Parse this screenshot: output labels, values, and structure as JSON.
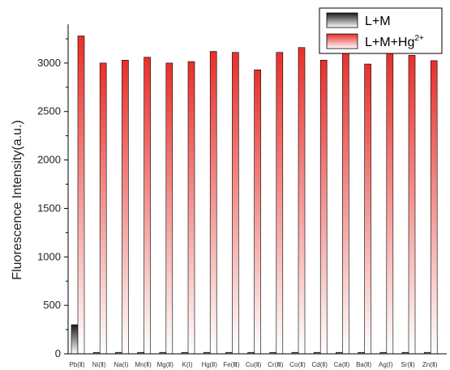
{
  "chart_data": {
    "type": "bar",
    "title": "",
    "xlabel": "",
    "ylabel": "Fluorescence Intensity(a.u.)",
    "ylim": [
      0,
      3400
    ],
    "yticks": [
      0,
      500,
      1000,
      1500,
      2000,
      2500,
      3000
    ],
    "grid": false,
    "legend_position": "top-right",
    "categories": [
      "Pb(Ⅱ)",
      "Ni(Ⅱ)",
      "Na(Ⅰ)",
      "Mn(Ⅱ)",
      "Mg(Ⅱ)",
      "K(Ⅰ)",
      "Hg(Ⅱ)",
      "Fe(Ⅲ)",
      "Cu(Ⅱ)",
      "Cr(Ⅲ)",
      "Co(Ⅱ)",
      "Cd(Ⅱ)",
      "Ca(Ⅱ)",
      "Ba(Ⅱ)",
      "Ag(Ⅰ)",
      "Sr(Ⅱ)",
      "Zn(Ⅱ)"
    ],
    "series": [
      {
        "name": "L+M",
        "color": "#222222",
        "values": [
          300,
          15,
          15,
          15,
          15,
          15,
          15,
          15,
          15,
          15,
          15,
          15,
          15,
          15,
          15,
          15,
          15
        ]
      },
      {
        "name": "L+M+Hg2+",
        "color": "#e8302a",
        "values": [
          3280,
          3000,
          3030,
          3060,
          3000,
          3015,
          3120,
          3110,
          2930,
          3110,
          3160,
          3030,
          3120,
          2990,
          3100,
          3080,
          3025
        ]
      }
    ],
    "legend": {
      "entries": [
        {
          "label": "L+M",
          "superscript": ""
        },
        {
          "label": "L+M+Hg",
          "superscript": "2+"
        }
      ]
    }
  }
}
